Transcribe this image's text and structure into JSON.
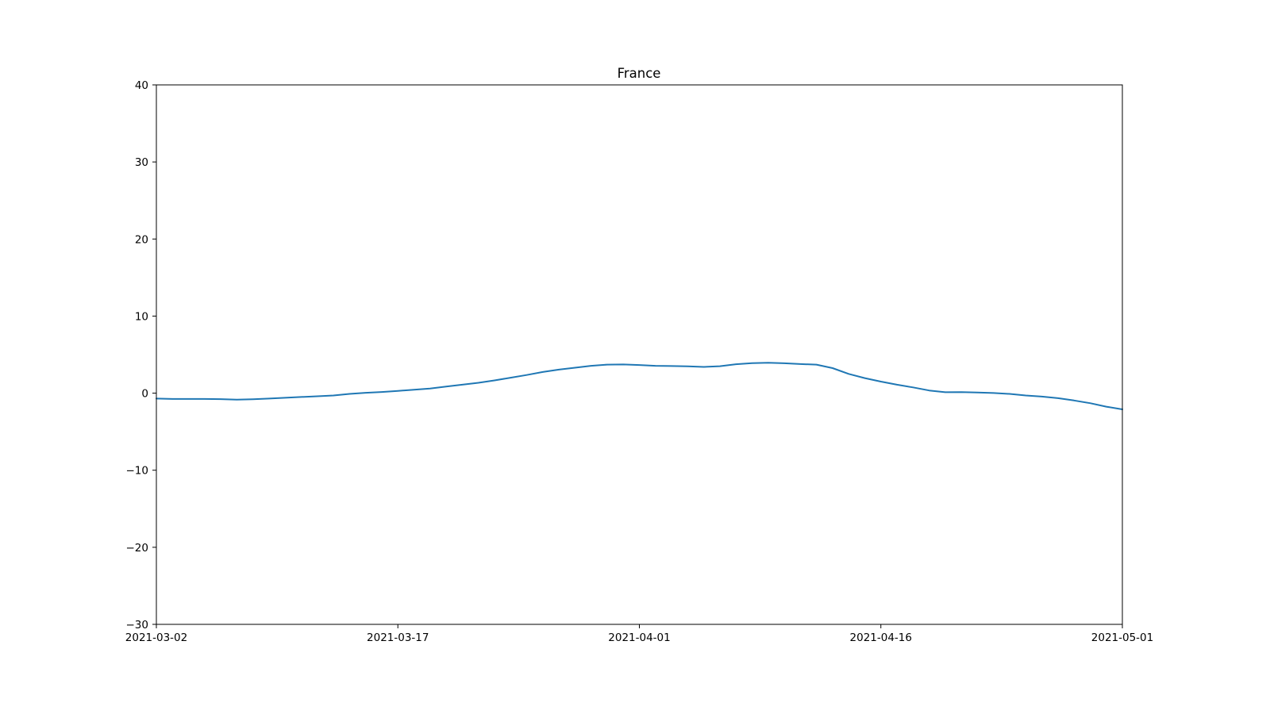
{
  "chart_data": {
    "type": "line",
    "title": "France",
    "xlabel": "",
    "ylabel": "",
    "x_type": "date",
    "xlim": [
      "2021-03-02",
      "2021-05-01"
    ],
    "ylim": [
      -30,
      40
    ],
    "grid": false,
    "legend": "none",
    "x_ticks": [
      "2021-03-02",
      "2021-03-17",
      "2021-04-01",
      "2021-04-16",
      "2021-05-01"
    ],
    "y_ticks": [
      -30,
      -20,
      -10,
      0,
      10,
      20,
      30,
      40
    ],
    "y_tick_labels": [
      "−30",
      "−20",
      "−10",
      "0",
      "10",
      "20",
      "30",
      "40"
    ],
    "series": [
      {
        "color": "#1f77b4",
        "x": [
          "2021-03-02",
          "2021-03-03",
          "2021-03-04",
          "2021-03-05",
          "2021-03-06",
          "2021-03-07",
          "2021-03-08",
          "2021-03-09",
          "2021-03-10",
          "2021-03-11",
          "2021-03-12",
          "2021-03-13",
          "2021-03-14",
          "2021-03-15",
          "2021-03-16",
          "2021-03-17",
          "2021-03-18",
          "2021-03-19",
          "2021-03-20",
          "2021-03-21",
          "2021-03-22",
          "2021-03-23",
          "2021-03-24",
          "2021-03-25",
          "2021-03-26",
          "2021-03-27",
          "2021-03-28",
          "2021-03-29",
          "2021-03-30",
          "2021-03-31",
          "2021-04-01",
          "2021-04-02",
          "2021-04-03",
          "2021-04-04",
          "2021-04-05",
          "2021-04-06",
          "2021-04-07",
          "2021-04-08",
          "2021-04-09",
          "2021-04-10",
          "2021-04-11",
          "2021-04-12",
          "2021-04-13",
          "2021-04-14",
          "2021-04-15",
          "2021-04-16",
          "2021-04-17",
          "2021-04-18",
          "2021-04-19",
          "2021-04-20",
          "2021-04-21",
          "2021-04-22",
          "2021-04-23",
          "2021-04-24",
          "2021-04-25",
          "2021-04-26",
          "2021-04-27",
          "2021-04-28",
          "2021-04-29",
          "2021-04-30",
          "2021-05-01"
        ],
        "y": [
          -0.7,
          -0.75,
          -0.75,
          -0.75,
          -0.78,
          -0.85,
          -0.8,
          -0.7,
          -0.6,
          -0.5,
          -0.4,
          -0.3,
          -0.1,
          0.05,
          0.15,
          0.3,
          0.45,
          0.6,
          0.85,
          1.1,
          1.35,
          1.65,
          2.0,
          2.35,
          2.75,
          3.05,
          3.3,
          3.55,
          3.7,
          3.72,
          3.65,
          3.55,
          3.52,
          3.48,
          3.4,
          3.5,
          3.75,
          3.9,
          3.95,
          3.88,
          3.78,
          3.7,
          3.25,
          2.5,
          1.95,
          1.5,
          1.1,
          0.75,
          0.35,
          0.12,
          0.14,
          0.08,
          0.02,
          -0.1,
          -0.3,
          -0.45,
          -0.65,
          -0.95,
          -1.3,
          -1.75,
          -2.1
        ]
      }
    ]
  }
}
